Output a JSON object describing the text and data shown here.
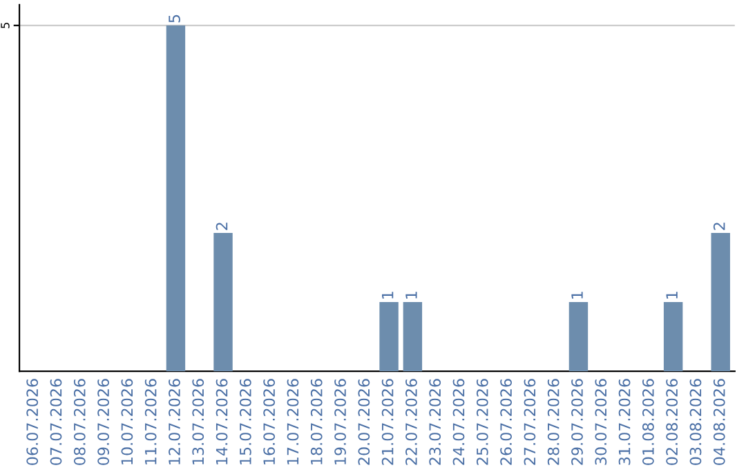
{
  "chart_data": {
    "type": "bar",
    "categories": [
      "06.07.2026",
      "07.07.2026",
      "08.07.2026",
      "09.07.2026",
      "10.07.2026",
      "11.07.2026",
      "12.07.2026",
      "13.07.2026",
      "14.07.2026",
      "15.07.2026",
      "16.07.2026",
      "17.07.2026",
      "18.07.2026",
      "19.07.2026",
      "20.07.2026",
      "21.07.2026",
      "22.07.2026",
      "23.07.2026",
      "24.07.2026",
      "25.07.2026",
      "26.07.2026",
      "27.07.2026",
      "28.07.2026",
      "29.07.2026",
      "30.07.2026",
      "31.07.2026",
      "01.08.2026",
      "02.08.2026",
      "03.08.2026",
      "04.08.2026"
    ],
    "values": [
      0,
      0,
      0,
      0,
      0,
      0,
      5,
      0,
      2,
      0,
      0,
      0,
      0,
      0,
      0,
      1,
      1,
      0,
      0,
      0,
      0,
      0,
      0,
      1,
      0,
      0,
      0,
      1,
      0,
      2
    ],
    "value_labels": [
      null,
      null,
      null,
      null,
      null,
      null,
      "5",
      null,
      "2",
      null,
      null,
      null,
      null,
      null,
      null,
      "1",
      "1",
      null,
      null,
      null,
      null,
      null,
      null,
      "1",
      null,
      null,
      null,
      "1",
      null,
      "2"
    ],
    "color": "#6d8dad",
    "ylim": [
      0,
      5.3
    ],
    "yticks": [
      5
    ],
    "grid": "y"
  }
}
